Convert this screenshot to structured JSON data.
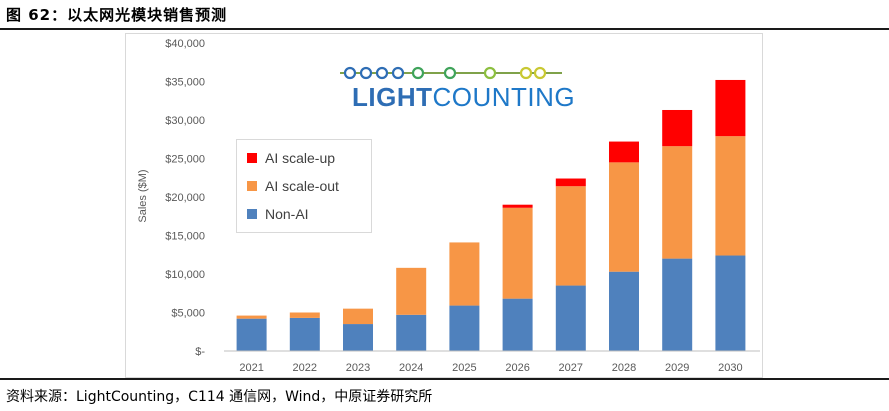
{
  "header": {
    "title": "图 62：以太网光模块销售预测"
  },
  "footer": {
    "source": "资料来源：LightCounting，C114 通信网，Wind，中原证券研究所"
  },
  "logo": {
    "part1": "LIGHT",
    "part2": "COUNTING",
    "bead_colors": [
      "#2e6db4",
      "#2e6db4",
      "#2e6db4",
      "#2e6db4",
      "#3fa35a",
      "#3fa35a",
      "#8cbf3f",
      "#c8c832",
      "#c8c832"
    ]
  },
  "colors": {
    "non_ai": "#4f81bd",
    "scale_out": "#f79646",
    "scale_up": "#ff0000"
  },
  "chart_data": {
    "type": "bar",
    "stacked": true,
    "title": "",
    "xlabel": "",
    "ylabel": "Sales ($M)",
    "ylim": [
      0,
      40000
    ],
    "yticks": [
      0,
      5000,
      10000,
      15000,
      20000,
      25000,
      30000,
      35000,
      40000
    ],
    "ytick_labels": [
      "$-",
      "$5,000",
      "$10,000",
      "$15,000",
      "$20,000",
      "$25,000",
      "$30,000",
      "$35,000",
      "$40,000"
    ],
    "categories": [
      "2021",
      "2022",
      "2023",
      "2024",
      "2025",
      "2026",
      "2027",
      "2028",
      "2029",
      "2030"
    ],
    "series": [
      {
        "name": "Non-AI",
        "color": "#4f81bd",
        "values": [
          4200,
          4300,
          3500,
          4700,
          5900,
          6800,
          8500,
          10300,
          12000,
          12400
        ]
      },
      {
        "name": "AI scale-out",
        "color": "#f79646",
        "values": [
          400,
          700,
          2000,
          6100,
          8200,
          11800,
          12900,
          14200,
          14600,
          15500
        ]
      },
      {
        "name": "AI scale-up",
        "color": "#ff0000",
        "values": [
          0,
          0,
          0,
          0,
          0,
          400,
          1000,
          2700,
          4700,
          7300
        ]
      }
    ],
    "legend": {
      "position": "upper-left",
      "order": [
        "AI scale-up",
        "AI scale-out",
        "Non-AI"
      ]
    },
    "grid": false
  }
}
